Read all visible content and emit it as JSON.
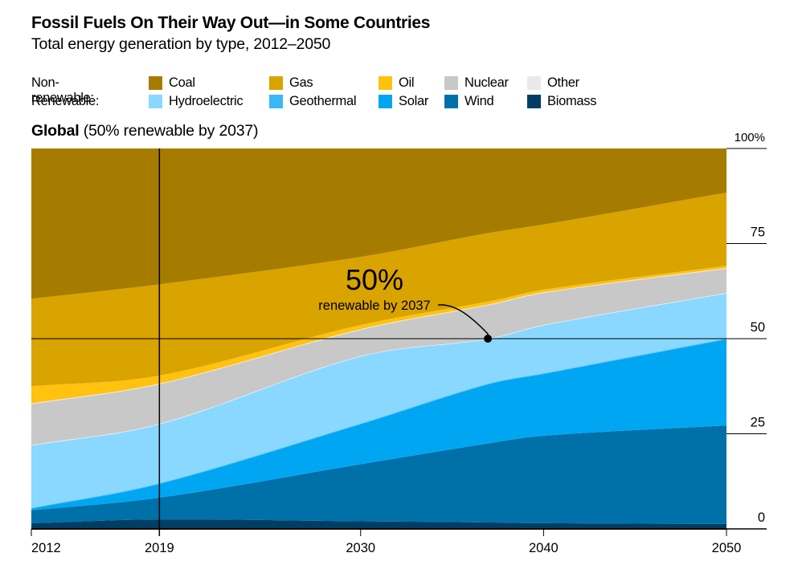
{
  "header": {
    "title": "Fossil Fuels On Their Way Out—in Some Countries",
    "subtitle": "Total energy generation by type, 2012–2050"
  },
  "legend": {
    "groups": [
      {
        "label": "Non-renewable:",
        "items": [
          {
            "name": "Coal",
            "color": "#a67c00"
          },
          {
            "name": "Gas",
            "color": "#d9a300"
          },
          {
            "name": "Oil",
            "color": "#ffc20e"
          },
          {
            "name": "Nuclear",
            "color": "#c8c8c8"
          },
          {
            "name": "Other",
            "color": "#e9e9e9"
          }
        ]
      },
      {
        "label": "Renewable:",
        "items": [
          {
            "name": "Hydroelectric",
            "color": "#8ad8ff"
          },
          {
            "name": "Geothermal",
            "color": "#3ab8f5"
          },
          {
            "name": "Solar",
            "color": "#00a6f2"
          },
          {
            "name": "Wind",
            "color": "#0070a8"
          },
          {
            "name": "Biomass",
            "color": "#003e66"
          }
        ]
      }
    ]
  },
  "section": {
    "bold": "Global",
    "rest": " (50% renewable by 2037)"
  },
  "annotation": {
    "big": "50%",
    "small": "renewable by 2037",
    "year": 2037,
    "value": 50
  },
  "chart_data": {
    "type": "area",
    "stacked": true,
    "normalized": true,
    "title": "Global (50% renewable by 2037)",
    "xlabel": "",
    "ylabel": "",
    "x": [
      2012,
      2019,
      2030,
      2037,
      2040,
      2050
    ],
    "xlim": [
      2012,
      2050
    ],
    "ylim": [
      0,
      100
    ],
    "x_ticks": [
      2012,
      2019,
      2030,
      2040,
      2050
    ],
    "y_ticks": [
      {
        "value": 0,
        "label": "0"
      },
      {
        "value": 25,
        "label": "25"
      },
      {
        "value": 50,
        "label": "50"
      },
      {
        "value": 75,
        "label": "75"
      },
      {
        "value": 100,
        "label": "100%"
      }
    ],
    "reference_lines": {
      "vertical_x": 2019,
      "horizontal_y": 50
    },
    "series": [
      {
        "name": "Biomass",
        "color": "#003e66",
        "values": [
          1.5,
          2.5,
          2.0,
          1.7,
          1.5,
          1.3
        ]
      },
      {
        "name": "Wind",
        "color": "#0070a8",
        "values": [
          3.4,
          5.7,
          15.0,
          20.8,
          23.0,
          25.9
        ]
      },
      {
        "name": "Solar",
        "color": "#00a6f2",
        "values": [
          0.4,
          3.6,
          10.5,
          15.5,
          16.2,
          22.6
        ]
      },
      {
        "name": "Geothermal",
        "color": "#3ab8f5",
        "values": [
          0.2,
          0.2,
          0.2,
          0.2,
          0.2,
          0.2
        ]
      },
      {
        "name": "Hydroelectric",
        "color": "#8ad8ff",
        "values": [
          16.5,
          15.6,
          17.7,
          11.8,
          12.7,
          12.0
        ]
      },
      {
        "name": "Nuclear",
        "color": "#c8c8c8",
        "values": [
          10.8,
          10.4,
          6.9,
          8.8,
          8.4,
          6.4
        ]
      },
      {
        "name": "Other",
        "color": "#e9e9e9",
        "values": [
          0.2,
          0.2,
          0.2,
          0.2,
          0.2,
          0.2
        ]
      },
      {
        "name": "Oil",
        "color": "#ffc20e",
        "values": [
          4.5,
          2.1,
          1.1,
          0.8,
          0.7,
          0.6
        ]
      },
      {
        "name": "Gas",
        "color": "#d9a300",
        "values": [
          23.0,
          24.0,
          17.9,
          18.0,
          17.1,
          19.2
        ]
      },
      {
        "name": "Coal",
        "color": "#a67c00",
        "values": [
          39.5,
          35.7,
          28.5,
          22.2,
          20.0,
          11.6
        ]
      }
    ],
    "legend_position": "top"
  }
}
